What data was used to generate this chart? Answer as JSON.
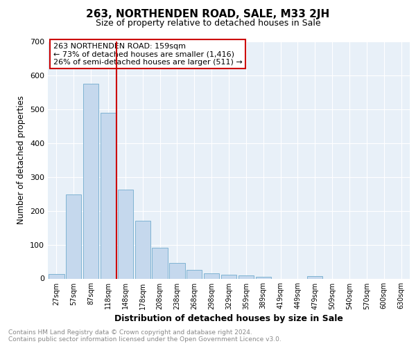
{
  "title": "263, NORTHENDEN ROAD, SALE, M33 2JH",
  "subtitle": "Size of property relative to detached houses in Sale",
  "xlabel": "Distribution of detached houses by size in Sale",
  "ylabel": "Number of detached properties",
  "footer": "Contains HM Land Registry data © Crown copyright and database right 2024.\nContains public sector information licensed under the Open Government Licence v3.0.",
  "bar_labels": [
    "27sqm",
    "57sqm",
    "87sqm",
    "118sqm",
    "148sqm",
    "178sqm",
    "208sqm",
    "238sqm",
    "268sqm",
    "298sqm",
    "329sqm",
    "359sqm",
    "389sqm",
    "419sqm",
    "449sqm",
    "479sqm",
    "509sqm",
    "540sqm",
    "570sqm",
    "600sqm",
    "630sqm"
  ],
  "bar_values": [
    14,
    248,
    575,
    490,
    263,
    170,
    91,
    47,
    26,
    15,
    12,
    9,
    6,
    0,
    0,
    8,
    0,
    0,
    0,
    0,
    0
  ],
  "bar_color": "#c5d8ed",
  "bar_edgecolor": "#7fb3d3",
  "vline_color": "#cc0000",
  "annotation_text": "263 NORTHENDEN ROAD: 159sqm\n← 73% of detached houses are smaller (1,416)\n26% of semi-detached houses are larger (511) →",
  "annotation_box_edgecolor": "#cc0000",
  "ylim": [
    0,
    700
  ],
  "yticks": [
    0,
    100,
    200,
    300,
    400,
    500,
    600,
    700
  ],
  "plot_bg_color": "#e8f0f8",
  "title_fontsize": 11,
  "subtitle_fontsize": 9,
  "vline_index": 3.5
}
